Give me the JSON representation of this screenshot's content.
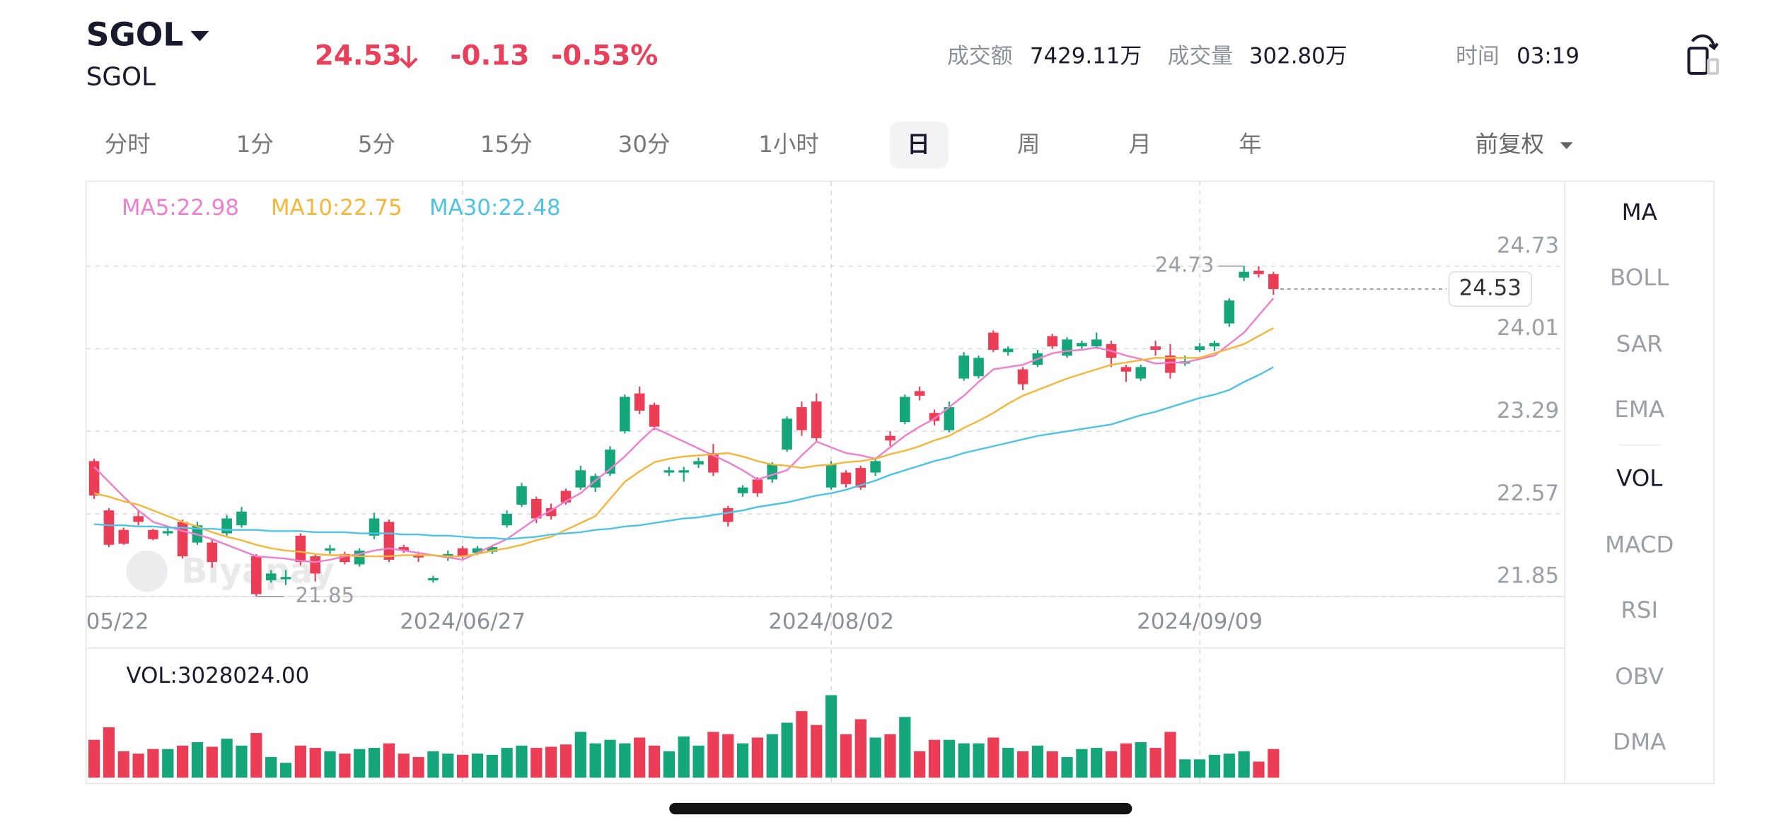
{
  "header": {
    "symbol": "SGOL",
    "name": "SGOL",
    "price": "24.53",
    "change": "-0.13",
    "change_pct": "-0.53%",
    "color": "#e8405a",
    "stats": [
      {
        "label": "成交额",
        "value": "7429.11万"
      },
      {
        "label": "成交量",
        "value": "302.80万"
      },
      {
        "label": "时间",
        "value": "03:19"
      }
    ]
  },
  "tabs": [
    "分时",
    "1分",
    "5分",
    "15分",
    "30分",
    "1小时",
    "日",
    "周",
    "月",
    "年"
  ],
  "selected_tab": 6,
  "adjust": "前复权",
  "indicators": [
    "MA",
    "BOLL",
    "SAR",
    "EMA",
    "VOL",
    "MACD",
    "RSI",
    "OBV",
    "DMA"
  ],
  "selected_indicators": [
    0,
    4
  ],
  "watermark": "Biyapay",
  "chart_data": [
    {
      "type": "candlestick",
      "up_color": "#14a57a",
      "down_color": "#ec3d57",
      "categories": [
        "05/22",
        null,
        null,
        null,
        null,
        null,
        null,
        null,
        null,
        null,
        null,
        null,
        null,
        null,
        null,
        null,
        null,
        null,
        null,
        null,
        null,
        null,
        null,
        null,
        null,
        "2024/06/27",
        null,
        null,
        null,
        null,
        null,
        null,
        null,
        null,
        null,
        null,
        null,
        null,
        null,
        null,
        null,
        null,
        null,
        null,
        null,
        null,
        null,
        null,
        null,
        null,
        "2024/08/02",
        null,
        null,
        null,
        null,
        null,
        null,
        null,
        null,
        null,
        null,
        null,
        null,
        null,
        null,
        null,
        null,
        null,
        null,
        null,
        null,
        null,
        null,
        null,
        null,
        "2024/09/09",
        null,
        null,
        null,
        null,
        null
      ],
      "open": [
        23.03,
        22.6,
        22.43,
        22.55,
        22.43,
        22.4,
        22.5,
        22.32,
        22.32,
        22.4,
        22.47,
        22.2,
        21.99,
        22.0,
        22.38,
        22.2,
        22.25,
        22.22,
        22.13,
        22.38,
        22.5,
        22.28,
        22.21,
        21.99,
        22.19,
        22.27,
        22.23,
        22.24,
        22.47,
        22.65,
        22.7,
        22.62,
        22.77,
        22.8,
        22.8,
        22.92,
        23.29,
        23.62,
        23.52,
        22.93,
        22.93,
        23.0,
        23.1,
        22.62,
        22.75,
        22.87,
        22.87,
        23.13,
        23.5,
        23.55,
        22.8,
        22.93,
        22.97,
        22.93,
        23.25,
        23.37,
        23.64,
        23.45,
        23.3,
        23.75,
        23.77,
        24.15,
        23.98,
        23.83,
        23.87,
        24.12,
        23.95,
        24.03,
        24.03,
        24.05,
        23.85,
        23.75,
        24.03,
        23.95,
        23.88,
        24.0,
        24.03,
        24.23,
        24.63,
        24.69,
        24.66
      ],
      "high": [
        23.05,
        22.62,
        22.45,
        22.6,
        22.44,
        22.45,
        22.52,
        22.5,
        22.35,
        22.56,
        22.63,
        22.22,
        22.08,
        22.08,
        22.4,
        22.22,
        22.3,
        22.24,
        22.27,
        22.58,
        22.52,
        22.3,
        22.24,
        22.03,
        22.25,
        22.29,
        22.29,
        22.3,
        22.6,
        22.84,
        22.72,
        22.66,
        22.79,
        22.99,
        22.92,
        23.16,
        23.61,
        23.68,
        23.54,
        22.98,
        22.98,
        23.06,
        23.18,
        22.64,
        22.82,
        22.89,
        23.02,
        23.42,
        23.55,
        23.62,
        23.03,
        22.95,
        22.99,
        23.06,
        23.29,
        23.61,
        23.68,
        23.48,
        23.55,
        23.98,
        23.95,
        24.17,
        24.03,
        23.85,
        24.0,
        24.14,
        24.11,
        24.08,
        24.15,
        24.08,
        23.87,
        23.87,
        24.08,
        24.05,
        23.95,
        24.06,
        24.08,
        24.45,
        24.73,
        24.73,
        24.68
      ],
      "low": [
        22.7,
        22.28,
        22.3,
        22.47,
        22.34,
        22.38,
        22.18,
        22.3,
        22.1,
        22.38,
        22.45,
        21.85,
        21.97,
        21.95,
        22.12,
        21.98,
        22.22,
        22.13,
        22.11,
        22.35,
        22.15,
        22.23,
        22.15,
        21.97,
        22.16,
        22.18,
        22.21,
        22.22,
        22.45,
        22.63,
        22.49,
        22.52,
        22.65,
        22.78,
        22.76,
        22.9,
        23.27,
        23.44,
        23.3,
        22.9,
        22.85,
        22.97,
        22.9,
        22.46,
        22.72,
        22.72,
        22.84,
        23.11,
        23.25,
        23.2,
        22.78,
        22.8,
        22.78,
        22.9,
        23.16,
        23.35,
        23.56,
        23.34,
        23.28,
        23.73,
        23.75,
        23.98,
        23.95,
        23.65,
        23.85,
        24.01,
        23.93,
        24.01,
        24.01,
        23.85,
        23.72,
        23.73,
        23.95,
        23.75,
        23.86,
        23.98,
        23.99,
        24.2,
        24.6,
        24.63,
        24.48
      ],
      "close": [
        22.73,
        22.3,
        22.31,
        22.5,
        22.35,
        22.42,
        22.2,
        22.47,
        22.15,
        22.53,
        22.59,
        21.87,
        22.05,
        22.02,
        22.15,
        22.05,
        22.27,
        22.15,
        22.25,
        22.53,
        22.17,
        22.25,
        22.19,
        22.01,
        22.22,
        22.2,
        22.27,
        22.28,
        22.57,
        22.81,
        22.53,
        22.55,
        22.67,
        22.95,
        22.9,
        23.13,
        23.59,
        23.47,
        23.33,
        22.95,
        22.95,
        23.03,
        22.93,
        22.5,
        22.8,
        22.75,
        23.0,
        23.4,
        23.3,
        23.23,
        23.0,
        22.83,
        22.8,
        23.03,
        23.21,
        23.59,
        23.6,
        23.38,
        23.5,
        23.95,
        23.93,
        24.0,
        24.01,
        23.7,
        23.97,
        24.03,
        24.09,
        24.06,
        24.09,
        23.93,
        23.81,
        23.85,
        24.0,
        23.8,
        23.9,
        24.03,
        24.06,
        24.43,
        24.68,
        24.66,
        24.53
      ],
      "lines": [
        {
          "name": "MA5:22.98",
          "color": "#ee7fce",
          "values": [
            22.98,
            22.85,
            22.72,
            22.6,
            22.5,
            22.46,
            22.42,
            22.39,
            22.35,
            22.3,
            22.25,
            22.2,
            22.19,
            22.18,
            22.16,
            22.15,
            22.17,
            22.2,
            22.22,
            22.25,
            22.27,
            22.25,
            22.23,
            22.21,
            22.19,
            22.17,
            22.23,
            22.29,
            22.35,
            22.44,
            22.53,
            22.6,
            22.68,
            22.75,
            22.86,
            22.96,
            23.07,
            23.2,
            23.32,
            23.26,
            23.2,
            23.14,
            23.08,
            23.02,
            22.95,
            22.87,
            22.91,
            22.95,
            23.08,
            23.2,
            23.15,
            23.1,
            23.08,
            23.05,
            23.15,
            23.25,
            23.33,
            23.4,
            23.5,
            23.6,
            23.72,
            23.83,
            23.85,
            23.87,
            23.92,
            23.97,
            23.99,
            24.0,
            24.02,
            23.99,
            23.95,
            23.92,
            23.88,
            23.89,
            23.89,
            23.92,
            23.95,
            24.05,
            24.15,
            24.3,
            24.45
          ]
        },
        {
          "name": "MA10:22.75",
          "color": "#f5b63a",
          "values": [
            22.75,
            22.72,
            22.68,
            22.65,
            22.6,
            22.55,
            22.5,
            22.46,
            22.41,
            22.37,
            22.34,
            22.3,
            22.27,
            22.25,
            22.24,
            22.22,
            22.21,
            22.21,
            22.2,
            22.2,
            22.2,
            22.21,
            22.21,
            22.21,
            22.2,
            22.2,
            22.22,
            22.25,
            22.27,
            22.3,
            22.34,
            22.37,
            22.43,
            22.49,
            22.55,
            22.7,
            22.85,
            22.94,
            23.02,
            23.05,
            23.07,
            23.08,
            23.09,
            23.1,
            23.07,
            23.03,
            23.0,
            22.99,
            22.97,
            22.99,
            23.0,
            23.02,
            23.03,
            23.05,
            23.09,
            23.12,
            23.16,
            23.21,
            23.25,
            23.32,
            23.38,
            23.45,
            23.53,
            23.6,
            23.65,
            23.7,
            23.75,
            23.79,
            23.83,
            23.87,
            23.89,
            23.91,
            23.93,
            23.93,
            23.93,
            23.93,
            23.97,
            24.01,
            24.05,
            24.12,
            24.19
          ]
        },
        {
          "name": "MA30:22.48",
          "color": "#4fc3e6",
          "values": [
            22.48,
            22.47,
            22.47,
            22.46,
            22.46,
            22.45,
            22.45,
            22.44,
            22.44,
            22.43,
            22.43,
            22.43,
            22.42,
            22.42,
            22.42,
            22.41,
            22.41,
            22.41,
            22.4,
            22.4,
            22.4,
            22.39,
            22.39,
            22.38,
            22.38,
            22.37,
            22.36,
            22.36,
            22.35,
            22.36,
            22.37,
            22.39,
            22.4,
            22.41,
            22.43,
            22.44,
            22.46,
            22.47,
            22.49,
            22.51,
            22.53,
            22.54,
            22.56,
            22.58,
            22.6,
            22.63,
            22.65,
            22.67,
            22.7,
            22.73,
            22.75,
            22.78,
            22.82,
            22.86,
            22.91,
            22.95,
            22.99,
            23.03,
            23.06,
            23.1,
            23.13,
            23.16,
            23.19,
            23.22,
            23.25,
            23.27,
            23.29,
            23.31,
            23.33,
            23.35,
            23.39,
            23.43,
            23.46,
            23.5,
            23.54,
            23.58,
            23.61,
            23.65,
            23.72,
            23.78,
            23.85
          ]
        }
      ],
      "ylim": [
        21.85,
        25.47
      ],
      "yticks": [
        21.85,
        22.57,
        23.29,
        24.01,
        24.73
      ],
      "grid": true
    },
    {
      "type": "bar",
      "title": "VOL:3028024.00",
      "ylim": [
        0,
        13700000
      ],
      "values": [
        4000000,
        5330000,
        2790000,
        2540000,
        3030000,
        3030000,
        3390000,
        3750000,
        3270000,
        4120000,
        3390000,
        4720000,
        2180000,
        1570000,
        3390000,
        3150000,
        2790000,
        2540000,
        3030000,
        3150000,
        3630000,
        2540000,
        2180000,
        2790000,
        2540000,
        2420000,
        2540000,
        2420000,
        3150000,
        3390000,
        3150000,
        3270000,
        3510000,
        4840000,
        3630000,
        4000000,
        3630000,
        4240000,
        3390000,
        2790000,
        4360000,
        3390000,
        4840000,
        4600000,
        3630000,
        4240000,
        4600000,
        5810000,
        7030000,
        5570000,
        8720000,
        4600000,
        6180000,
        4240000,
        4600000,
        6420000,
        2790000,
        4000000,
        4000000,
        3630000,
        3630000,
        4240000,
        3150000,
        2790000,
        3390000,
        2790000,
        2180000,
        3030000,
        3150000,
        2790000,
        3630000,
        3750000,
        3150000,
        4840000,
        1940000,
        1940000,
        2420000,
        2540000,
        2790000,
        1700000,
        3028024
      ]
    }
  ]
}
